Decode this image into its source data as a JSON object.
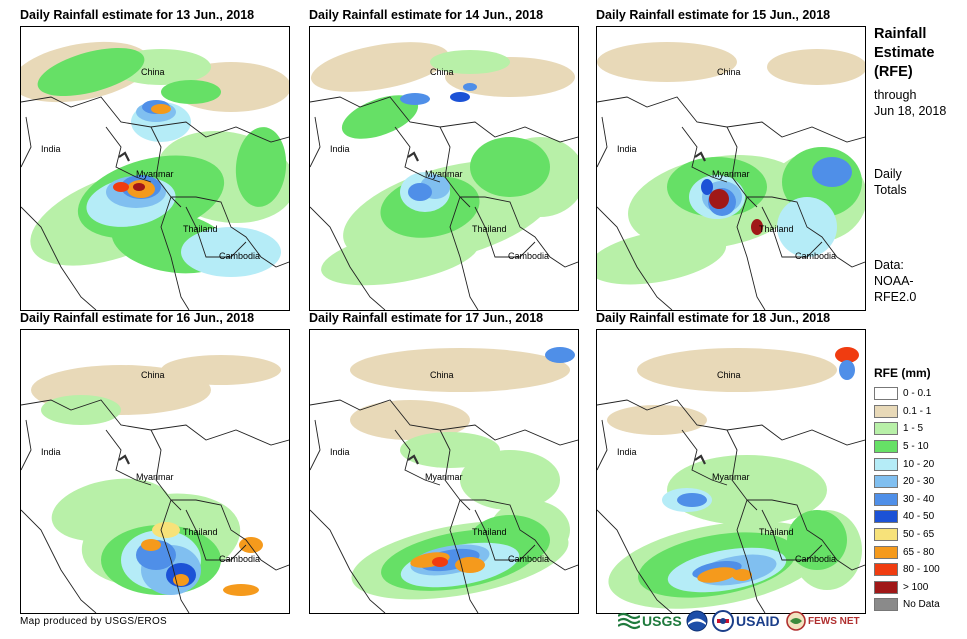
{
  "panels": [
    {
      "title": "Daily Rainfall estimate for 13 Jun., 2018"
    },
    {
      "title": "Daily Rainfall estimate for 14 Jun., 2018"
    },
    {
      "title": "Daily Rainfall estimate for 15 Jun., 2018"
    },
    {
      "title": "Daily Rainfall estimate for 16 Jun., 2018"
    },
    {
      "title": "Daily Rainfall estimate for 17 Jun., 2018"
    },
    {
      "title": "Daily Rainfall estimate for 18 Jun., 2018"
    }
  ],
  "country_labels": {
    "china": "China",
    "india": "India",
    "myanmar": "Myanmar",
    "thailand": "Thailand",
    "cambodia": "Cambodia"
  },
  "side": {
    "title_line1": "Rainfall",
    "title_line2": "Estimate",
    "title_line3": "(RFE)",
    "through_line1": "through",
    "through_line2": "Jun 18, 2018",
    "daily_line1": "Daily",
    "daily_line2": "Totals",
    "data_line1": "Data:",
    "data_line2": "NOAA-",
    "data_line3": "RFE2.0"
  },
  "legend": {
    "title": "RFE (mm)",
    "classes": [
      {
        "label": "0 - 0.1",
        "color": "#ffffff"
      },
      {
        "label": "0.1 - 1",
        "color": "#e8d9b8"
      },
      {
        "label": "1 - 5",
        "color": "#b8f0a8"
      },
      {
        "label": "5 - 10",
        "color": "#66e066"
      },
      {
        "label": "10 - 20",
        "color": "#b5ecf7"
      },
      {
        "label": "20 - 30",
        "color": "#80bff0"
      },
      {
        "label": "30 - 40",
        "color": "#4f8fe8"
      },
      {
        "label": "40 - 50",
        "color": "#1c52d6"
      },
      {
        "label": "50 - 65",
        "color": "#f7e27a"
      },
      {
        "label": "65 - 80",
        "color": "#f59a1c"
      },
      {
        "label": "80 - 100",
        "color": "#f03c10"
      },
      {
        "label": "> 100",
        "color": "#a01818"
      },
      {
        "label": "No Data",
        "color": "#8a8a8a"
      }
    ]
  },
  "credit": "Map produced by USGS/EROS",
  "logos": {
    "usgs": "USGS",
    "usaid": "USAID",
    "fewsnet": "FEWS NET"
  }
}
